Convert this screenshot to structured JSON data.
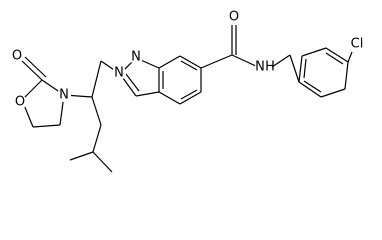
{
  "atoms": [
    {
      "label": "O"
    },
    {
      "label": "O"
    },
    {
      "label": "N"
    },
    {
      "label": "N"
    },
    {
      "label": "N"
    },
    {
      "label": "O"
    },
    {
      "label": "N"
    },
    {
      "label": "H"
    },
    {
      "label": "Cl"
    }
  ]
}
